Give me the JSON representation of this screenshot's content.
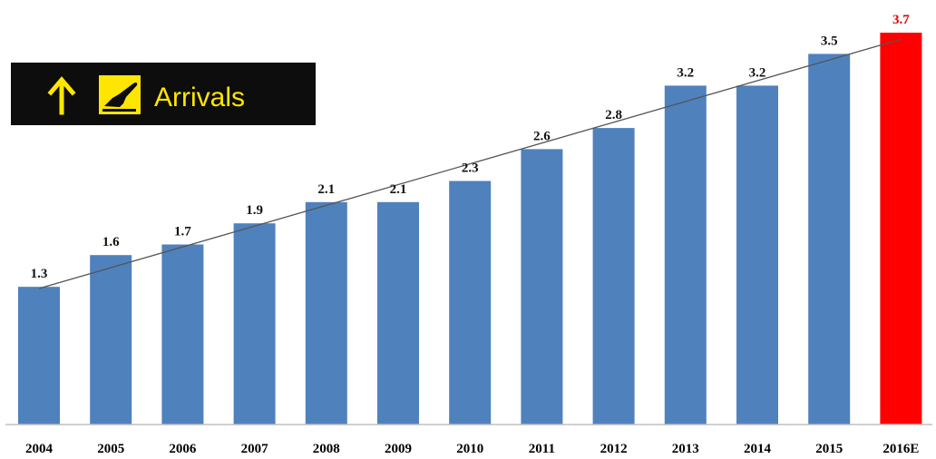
{
  "sign": {
    "text": "Arrivals",
    "arrow_icon": "arrow-up-icon",
    "plane_icon": "plane-landing-icon",
    "background": "#0d0d0d",
    "foreground": "#ffe600"
  },
  "chart_data": {
    "type": "bar",
    "categories": [
      "2004",
      "2005",
      "2006",
      "2007",
      "2008",
      "2009",
      "2010",
      "2011",
      "2012",
      "2013",
      "2014",
      "2015",
      "2016E"
    ],
    "values": [
      1.3,
      1.6,
      1.7,
      1.9,
      2.1,
      2.1,
      2.3,
      2.6,
      2.8,
      3.2,
      3.2,
      3.5,
      3.7
    ],
    "data_labels": [
      "1.3",
      "1.6",
      "1.7",
      "1.9",
      "2.1",
      "2.1",
      "2.3",
      "2.6",
      "2.8",
      "3.2",
      "3.2",
      "3.5",
      "3.7"
    ],
    "highlight": {
      "category": "2016E",
      "color": "#ff0000",
      "label_color": "#e00000"
    },
    "bar_color": "#4f81bd",
    "trendline": true,
    "ylim": [
      0,
      3.7
    ],
    "grid": false,
    "legend": "none",
    "title": "",
    "xlabel": "",
    "ylabel": ""
  }
}
